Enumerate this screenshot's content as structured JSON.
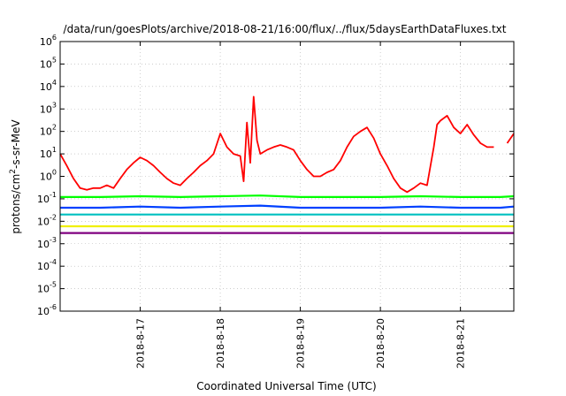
{
  "chart_data": {
    "type": "line",
    "title": "/data/run/goesPlots/archive/2018-08-21/16:00/flux/../flux/5daysEarthDataFluxes.txt",
    "xlabel": "Coordinated Universal Time (UTC)",
    "ylabel_parts": [
      "protons/cm",
      "2",
      "-s-sr-MeV"
    ],
    "yscale": "log",
    "ylim": [
      1e-06,
      1000000.0
    ],
    "xlim": [
      "2018-08-16T00:00",
      "2018-08-21T16:00"
    ],
    "grid": true,
    "x_tick_labels": [
      "2018-8-17",
      "2018-8-18",
      "2018-8-19",
      "2018-8-20",
      "2018-8-21"
    ],
    "x_ticks": [
      "2018-08-17",
      "2018-08-18",
      "2018-08-19",
      "2018-08-20",
      "2018-08-21"
    ],
    "y_tick_exponents": [
      "-6",
      "-5",
      "-4",
      "-3",
      "-2",
      "-1",
      "0",
      "1",
      "2",
      "3",
      "4",
      "5",
      "6"
    ],
    "y_tick_base": "10",
    "series": [
      {
        "color": "#ff0000",
        "x": [
          "2018-08-16T00:00",
          "2018-08-16T02:00",
          "2018-08-16T04:00",
          "2018-08-16T06:00",
          "2018-08-16T08:00",
          "2018-08-16T10:00",
          "2018-08-16T12:00",
          "2018-08-16T14:00",
          "2018-08-16T16:00",
          "2018-08-16T18:00",
          "2018-08-16T20:00",
          "2018-08-16T22:00",
          "2018-08-17T00:00",
          "2018-08-17T02:00",
          "2018-08-17T04:00",
          "2018-08-17T06:00",
          "2018-08-17T08:00",
          "2018-08-17T10:00",
          "2018-08-17T12:00",
          "2018-08-17T14:00",
          "2018-08-17T16:00",
          "2018-08-17T18:00",
          "2018-08-17T20:00",
          "2018-08-17T22:00",
          "2018-08-18T00:00",
          "2018-08-18T02:00",
          "2018-08-18T04:00",
          "2018-08-18T06:00",
          "2018-08-18T07:00",
          "2018-08-18T08:00",
          "2018-08-18T09:00",
          "2018-08-18T10:00",
          "2018-08-18T11:00",
          "2018-08-18T12:00",
          "2018-08-18T14:00",
          "2018-08-18T16:00",
          "2018-08-18T18:00",
          "2018-08-18T20:00",
          "2018-08-18T22:00",
          "2018-08-19T00:00",
          "2018-08-19T02:00",
          "2018-08-19T04:00",
          "2018-08-19T06:00",
          "2018-08-19T08:00",
          "2018-08-19T10:00",
          "2018-08-19T12:00",
          "2018-08-19T14:00",
          "2018-08-19T16:00",
          "2018-08-19T18:00",
          "2018-08-19T20:00",
          "2018-08-19T22:00",
          "2018-08-20T00:00",
          "2018-08-20T02:00",
          "2018-08-20T04:00",
          "2018-08-20T06:00",
          "2018-08-20T08:00",
          "2018-08-20T10:00",
          "2018-08-20T12:00",
          "2018-08-20T14:00",
          "2018-08-20T16:00",
          "2018-08-20T17:00",
          "2018-08-20T18:00",
          "2018-08-20T20:00",
          "2018-08-20T22:00",
          "2018-08-21T00:00",
          "2018-08-21T02:00",
          "2018-08-21T04:00",
          "2018-08-21T06:00",
          "2018-08-21T08:00",
          "2018-08-21T10:00",
          "2018-08-21T12:00",
          "2018-08-21T14:00",
          "2018-08-21T16:00"
        ],
        "y": [
          10,
          3,
          0.8,
          0.3,
          0.25,
          0.3,
          0.3,
          0.4,
          0.3,
          0.8,
          2,
          4,
          7,
          5,
          3,
          1.5,
          0.8,
          0.5,
          0.4,
          0.8,
          1.5,
          3,
          5,
          10,
          80,
          20,
          10,
          8,
          0.6,
          250,
          4,
          3500,
          40,
          10,
          15,
          20,
          25,
          20,
          15,
          5,
          2,
          1,
          1,
          1.5,
          2,
          5,
          20,
          60,
          100,
          150,
          50,
          10,
          3,
          0.8,
          0.3,
          0.2,
          0.3,
          0.5,
          0.4,
          20,
          200,
          300,
          500,
          150,
          80,
          200,
          70,
          30,
          20,
          20,
          null,
          30,
          80
        ]
      },
      {
        "color": "#00ff00",
        "x": [
          "2018-08-16T00:00",
          "2018-08-16T12:00",
          "2018-08-17T00:00",
          "2018-08-17T12:00",
          "2018-08-18T00:00",
          "2018-08-18T12:00",
          "2018-08-19T00:00",
          "2018-08-19T12:00",
          "2018-08-20T00:00",
          "2018-08-20T12:00",
          "2018-08-21T00:00",
          "2018-08-21T12:00",
          "2018-08-21T16:00"
        ],
        "y": [
          0.12,
          0.12,
          0.13,
          0.12,
          0.13,
          0.14,
          0.12,
          0.12,
          0.12,
          0.13,
          0.12,
          0.12,
          0.13
        ]
      },
      {
        "color": "#0040ff",
        "x": [
          "2018-08-16T00:00",
          "2018-08-16T12:00",
          "2018-08-17T00:00",
          "2018-08-17T12:00",
          "2018-08-18T00:00",
          "2018-08-18T12:00",
          "2018-08-19T00:00",
          "2018-08-19T12:00",
          "2018-08-20T00:00",
          "2018-08-20T12:00",
          "2018-08-21T00:00",
          "2018-08-21T12:00",
          "2018-08-21T16:00"
        ],
        "y": [
          0.04,
          0.04,
          0.045,
          0.04,
          0.045,
          0.05,
          0.04,
          0.04,
          0.04,
          0.045,
          0.04,
          0.04,
          0.045
        ]
      },
      {
        "color": "#00c0c0",
        "x": [
          "2018-08-16T00:00",
          "2018-08-16T12:00",
          "2018-08-17T00:00",
          "2018-08-17T12:00",
          "2018-08-18T00:00",
          "2018-08-18T12:00",
          "2018-08-19T00:00",
          "2018-08-19T12:00",
          "2018-08-20T00:00",
          "2018-08-20T12:00",
          "2018-08-21T00:00",
          "2018-08-21T12:00",
          "2018-08-21T16:00"
        ],
        "y": [
          0.02,
          0.02,
          0.02,
          0.02,
          0.02,
          0.02,
          0.02,
          0.02,
          0.02,
          0.02,
          0.02,
          0.02,
          0.02
        ]
      },
      {
        "color": "#f0f000",
        "x": [
          "2018-08-16T00:00",
          "2018-08-16T12:00",
          "2018-08-17T00:00",
          "2018-08-17T12:00",
          "2018-08-18T00:00",
          "2018-08-18T12:00",
          "2018-08-19T00:00",
          "2018-08-19T12:00",
          "2018-08-20T00:00",
          "2018-08-20T12:00",
          "2018-08-21T00:00",
          "2018-08-21T12:00",
          "2018-08-21T16:00"
        ],
        "y": [
          0.006,
          0.006,
          0.006,
          0.006,
          0.006,
          0.006,
          0.006,
          0.006,
          0.006,
          0.006,
          0.006,
          0.006,
          0.006
        ]
      },
      {
        "color": "#800080",
        "x": [
          "2018-08-16T00:00",
          "2018-08-16T12:00",
          "2018-08-17T00:00",
          "2018-08-17T12:00",
          "2018-08-18T00:00",
          "2018-08-18T12:00",
          "2018-08-19T00:00",
          "2018-08-19T12:00",
          "2018-08-20T00:00",
          "2018-08-20T12:00",
          "2018-08-21T00:00",
          "2018-08-21T12:00",
          "2018-08-21T16:00"
        ],
        "y": [
          0.003,
          0.003,
          0.003,
          0.003,
          0.003,
          0.003,
          0.003,
          0.003,
          0.003,
          0.003,
          0.003,
          0.003,
          0.003
        ]
      }
    ]
  }
}
